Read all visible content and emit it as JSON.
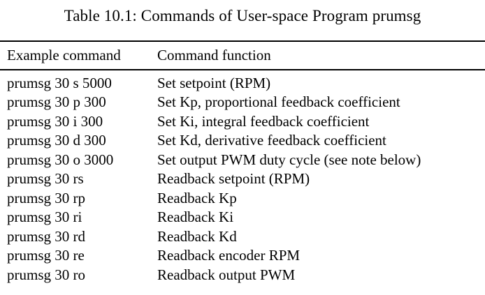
{
  "caption": "Table 10.1: Commands of User-space Program prumsg",
  "table": {
    "columns": [
      "Example command",
      "Command function"
    ],
    "rows": [
      {
        "command": "prumsg 30 s 5000",
        "function": "Set setpoint (RPM)"
      },
      {
        "command": "prumsg 30 p 300",
        "function": "Set Kp, proportional feedback coefficient"
      },
      {
        "command": "prumsg 30 i 300",
        "function": "Set Ki, integral feedback coefficient"
      },
      {
        "command": "prumsg 30 d 300",
        "function": "Set Kd, derivative feedback coefficient"
      },
      {
        "command": "prumsg 30 o 3000",
        "function": "Set output PWM duty cycle (see note below)"
      },
      {
        "command": "prumsg 30 rs",
        "function": "Readback setpoint (RPM)"
      },
      {
        "command": "prumsg 30 rp",
        "function": "Readback Kp"
      },
      {
        "command": "prumsg 30 ri",
        "function": "Readback Ki"
      },
      {
        "command": "prumsg 30 rd",
        "function": "Readback Kd"
      },
      {
        "command": "prumsg 30 re",
        "function": "Readback encoder RPM"
      },
      {
        "command": "prumsg 30 ro",
        "function": "Readback output PWM"
      }
    ]
  },
  "colors": {
    "text": "#000000",
    "background": "#ffffff",
    "rule": "#000000"
  }
}
